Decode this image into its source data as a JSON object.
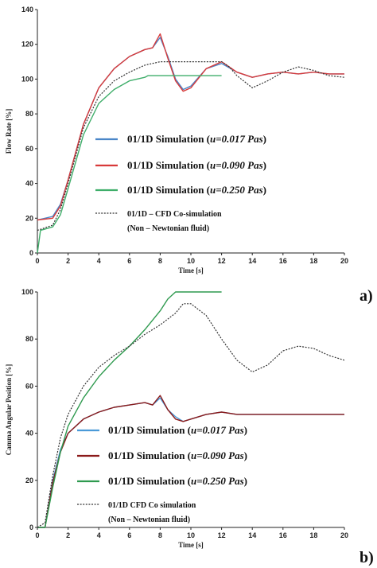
{
  "chart_data": [
    {
      "type": "line",
      "panel_label": "a)",
      "xlabel": "Time [s]",
      "ylabel": "Flow Rate [%]",
      "xlim": [
        0,
        20
      ],
      "ylim": [
        0,
        140
      ],
      "xticks": [
        0,
        2,
        4,
        6,
        8,
        10,
        12,
        14,
        16,
        18,
        20
      ],
      "yticks": [
        0,
        20,
        40,
        60,
        80,
        100,
        120,
        140
      ],
      "grid": false,
      "legend_position": "center",
      "series": [
        {
          "name": "01/1D Simulation (μ=0.017 Pas)",
          "color": "#4a86c8",
          "style": "solid",
          "x": [
            0,
            1,
            1.5,
            2,
            3,
            4,
            5,
            6,
            7,
            7.5,
            8,
            8.5,
            9,
            9.5,
            10,
            11,
            12,
            13,
            14,
            15,
            16,
            17,
            18,
            19,
            20
          ],
          "y": [
            19,
            21,
            28,
            42,
            74,
            95,
            106,
            113,
            117,
            118,
            124,
            113,
            100,
            94,
            96,
            106,
            109,
            104,
            101,
            103,
            104,
            103,
            104,
            103,
            103
          ]
        },
        {
          "name": "01/1D Simulation (μ=0.090 Pas)",
          "color": "#d83a3a",
          "style": "solid",
          "x": [
            0,
            1,
            1.5,
            2,
            3,
            4,
            5,
            6,
            7,
            7.5,
            8,
            8.5,
            9,
            9.5,
            10,
            11,
            12,
            13,
            14,
            15,
            16,
            17,
            18,
            19,
            20
          ],
          "y": [
            19,
            20,
            27,
            42,
            74,
            95,
            106,
            113,
            117,
            118,
            126,
            112,
            99,
            93,
            95,
            106,
            110,
            104,
            101,
            103,
            104,
            103,
            104,
            103,
            103
          ]
        },
        {
          "name": "01/1D Simulation (μ=0.250 Pas)",
          "color": "#3fae6a",
          "style": "solid",
          "x": [
            0,
            0.2,
            1,
            1.5,
            2,
            3,
            4,
            5,
            6,
            7,
            7.2,
            8,
            9,
            10,
            11,
            12
          ],
          "y": [
            0,
            13,
            15,
            22,
            37,
            68,
            86,
            94,
            99,
            101,
            102,
            102,
            102,
            102,
            102,
            102
          ]
        },
        {
          "name": "01/1D – CFD Co-simulation (Non – Newtonian fluid)",
          "color": "#333333",
          "style": "dotted",
          "x": [
            0,
            1,
            1.5,
            2,
            3,
            4,
            5,
            6,
            7,
            8,
            9,
            10,
            11,
            12,
            12.5,
            13,
            14,
            15,
            16,
            17,
            18,
            19,
            20
          ],
          "y": [
            13,
            16,
            25,
            40,
            72,
            90,
            99,
            104,
            108,
            110,
            110,
            110,
            110,
            110,
            107,
            102,
            95,
            99,
            104,
            107,
            105,
            102,
            101
          ]
        }
      ]
    },
    {
      "type": "line",
      "panel_label": "b)",
      "xlabel": "Time [s]",
      "ylabel": "Camma Angular Position [%]",
      "xlim": [
        0,
        20
      ],
      "ylim": [
        0,
        100
      ],
      "xticks": [
        0,
        2,
        4,
        6,
        8,
        10,
        12,
        14,
        16,
        18,
        20
      ],
      "yticks": [
        0,
        20,
        40,
        60,
        80,
        100
      ],
      "grid": false,
      "legend_position": "bottom-center",
      "series": [
        {
          "name": "01/1D Simulation (μ=0.017 Pas)",
          "color": "#4a9ad8",
          "style": "solid",
          "x": [
            0,
            0.5,
            1,
            1.5,
            2,
            3,
            4,
            5,
            6,
            7,
            7.5,
            8,
            8.5,
            9,
            9.5,
            10,
            11,
            12,
            13,
            14,
            15,
            16,
            17,
            18,
            19,
            20
          ],
          "y": [
            0,
            0,
            20,
            33,
            40,
            46,
            49,
            51,
            52,
            53,
            52,
            55,
            50,
            47,
            45,
            46,
            48,
            49,
            48,
            48,
            48,
            48,
            48,
            48,
            48,
            48
          ]
        },
        {
          "name": "01/1D Simulation (μ=0.090 Pas)",
          "color": "#8b1a1a",
          "style": "solid",
          "x": [
            0,
            0.5,
            1,
            1.5,
            2,
            3,
            4,
            5,
            6,
            7,
            7.5,
            8,
            8.5,
            9,
            9.5,
            10,
            11,
            12,
            13,
            14,
            15,
            16,
            17,
            18,
            19,
            20
          ],
          "y": [
            0,
            0,
            19,
            32,
            40,
            46,
            49,
            51,
            52,
            53,
            52,
            56,
            50,
            46,
            45,
            46,
            48,
            49,
            48,
            48,
            48,
            48,
            48,
            48,
            48,
            48
          ]
        },
        {
          "name": "01/1D Simulation (μ=0.250 Pas)",
          "color": "#2f9a4f",
          "style": "solid",
          "x": [
            0,
            0.5,
            1,
            1.5,
            2,
            3,
            4,
            5,
            6,
            7,
            8,
            8.5,
            9,
            9.5,
            10,
            11,
            12
          ],
          "y": [
            0,
            0,
            17,
            32,
            43,
            55,
            64,
            71,
            77,
            84,
            92,
            97,
            100,
            100,
            100,
            100,
            100
          ]
        },
        {
          "name": "01/1D – CFD Co-simulation (Non – Newtonian fluid)",
          "color": "#333333",
          "style": "dotted",
          "x": [
            0,
            0.5,
            1,
            1.5,
            2,
            3,
            4,
            5,
            6,
            7,
            8,
            9,
            9.5,
            10,
            11,
            12,
            13,
            14,
            15,
            16,
            17,
            18,
            19,
            20
          ],
          "y": [
            0,
            2,
            22,
            38,
            48,
            60,
            68,
            73,
            77,
            82,
            86,
            91,
            95,
            95,
            90,
            80,
            71,
            66,
            69,
            75,
            77,
            76,
            73,
            71
          ]
        }
      ]
    }
  ],
  "legends": {
    "a": [
      {
        "prefix": "01/1D Simulation (",
        "var": "u",
        "value": "=0.017",
        "unit": " Pas",
        "close": ")"
      },
      {
        "prefix": "01/1D Simulation (",
        "var": "u",
        "value": "=0.090",
        "unit": " Pas",
        "close": ")"
      },
      {
        "prefix": "01/1D Simulation (",
        "var": "u",
        "value": "=0.250",
        "unit": " Pas",
        "close": ")"
      },
      {
        "line1": "01/1D – CFD Co-simulation",
        "line2": "(Non – Newtonian fluid)"
      }
    ],
    "b": [
      {
        "prefix": "01/1D Simulation (",
        "var": "u",
        "value": "=0.017",
        "unit": " Pas",
        "close": ")"
      },
      {
        "prefix": "01/1D Simulation (",
        "var": "u",
        "value": "=0.090",
        "unit": " Pas",
        "close": ")"
      },
      {
        "prefix": "01/1D Simulation (",
        "var": "u",
        "value": "=0.250",
        "unit": " Pas",
        "close": ")"
      },
      {
        "line1": "01/1D    CFD Co simulation",
        "line2": "(Non – Newtonian fluid)"
      }
    ]
  }
}
